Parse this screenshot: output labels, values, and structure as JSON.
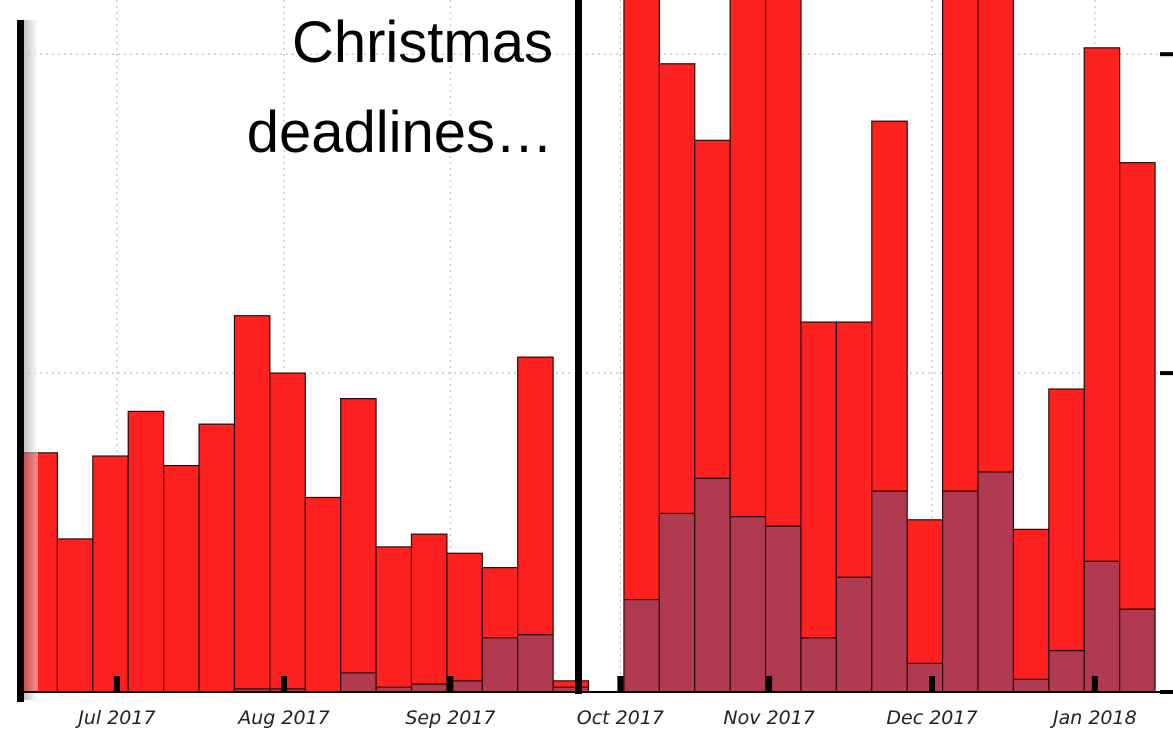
{
  "chart_data": {
    "type": "stacked-bar",
    "annotation": [
      "Christmas",
      "deadlines…"
    ],
    "x": [
      0,
      1,
      2,
      3,
      4,
      5,
      6,
      7,
      8,
      9,
      10,
      11,
      12,
      13,
      14,
      15,
      16,
      17,
      18,
      19,
      20,
      21,
      22,
      23,
      24,
      25,
      26,
      27,
      28,
      29,
      30,
      31
    ],
    "series": [
      {
        "color": "#b03a50",
        "values": [
          0,
          0,
          0,
          0,
          0,
          0,
          1,
          1,
          0,
          6,
          1.5,
          2.5,
          3.5,
          17,
          18,
          1.5,
          0,
          29,
          56,
          67,
          55,
          52,
          17,
          36,
          63,
          9,
          63,
          69,
          4,
          13,
          41,
          26
        ]
      },
      {
        "color": "#ff2020",
        "values": [
          75,
          48,
          74,
          88,
          71,
          84,
          117,
          99,
          61,
          86,
          44,
          47,
          40,
          22,
          87,
          2,
          0,
          200,
          141,
          106,
          175,
          180,
          99,
          80,
          116,
          45,
          170,
          165,
          47,
          82,
          161,
          140
        ]
      }
    ],
    "xlim": [
      -0.5,
      32.6
    ],
    "xticks": [
      {
        "value": 2.18,
        "label": "Jul 2017"
      },
      {
        "value": 6.9,
        "label": "Aug 2017"
      },
      {
        "value": 11.6,
        "label": "Sep 2017"
      },
      {
        "value": 16.4,
        "label": "Oct 2017"
      },
      {
        "value": 20.6,
        "label": "Nov 2017"
      },
      {
        "value": 25.2,
        "label": "Dec 2017"
      },
      {
        "value": 29.8,
        "label": "Jan 2018"
      }
    ],
    "ylim": [
      0,
      217
    ],
    "yticks": [
      0,
      100,
      200
    ],
    "grid": true
  }
}
